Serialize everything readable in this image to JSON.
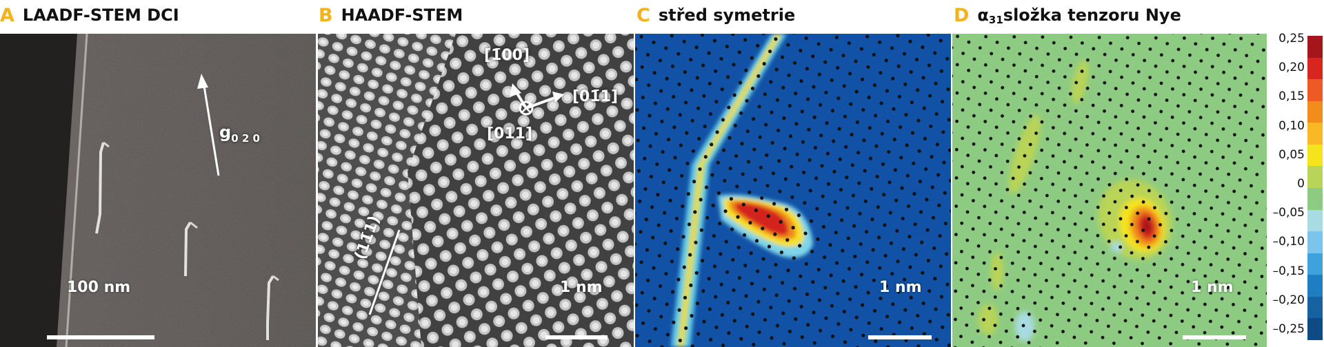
{
  "panels": [
    {
      "letter": "A",
      "title": "LAADF-STEM DCI",
      "scale_bar": "100 nm",
      "vector_label": "g",
      "vector_subscript": "0 2 0"
    },
    {
      "letter": "B",
      "title": "HAADF-STEM",
      "scale_bar": "1 nm",
      "directions": [
        "[1̄00]",
        "[01̄1]",
        "[011]"
      ],
      "plane_label": "(11̄1)"
    },
    {
      "letter": "C",
      "title": "střed symetrie",
      "scale_bar": "1 nm"
    },
    {
      "letter": "D",
      "title_symbol": "α",
      "title_subscript": "31",
      "title": " složka tenzoru Nye",
      "scale_bar": "1 nm"
    }
  ],
  "colorbar": {
    "ticks": [
      "0,25",
      "0,20",
      "0,15",
      "0,10",
      "0,05",
      "0",
      "–0,05",
      "–0,10",
      "–0,15",
      "–0,20",
      "–0,25"
    ],
    "colors": [
      "#a4151c",
      "#d7261f",
      "#ee5a24",
      "#f28d1d",
      "#f9b824",
      "#f4e41e",
      "#b9d456",
      "#8ecb82",
      "#a8dbe2",
      "#7cc4ea",
      "#3ea2dd",
      "#1d7ec3",
      "#16619f",
      "#0f4b82"
    ]
  }
}
